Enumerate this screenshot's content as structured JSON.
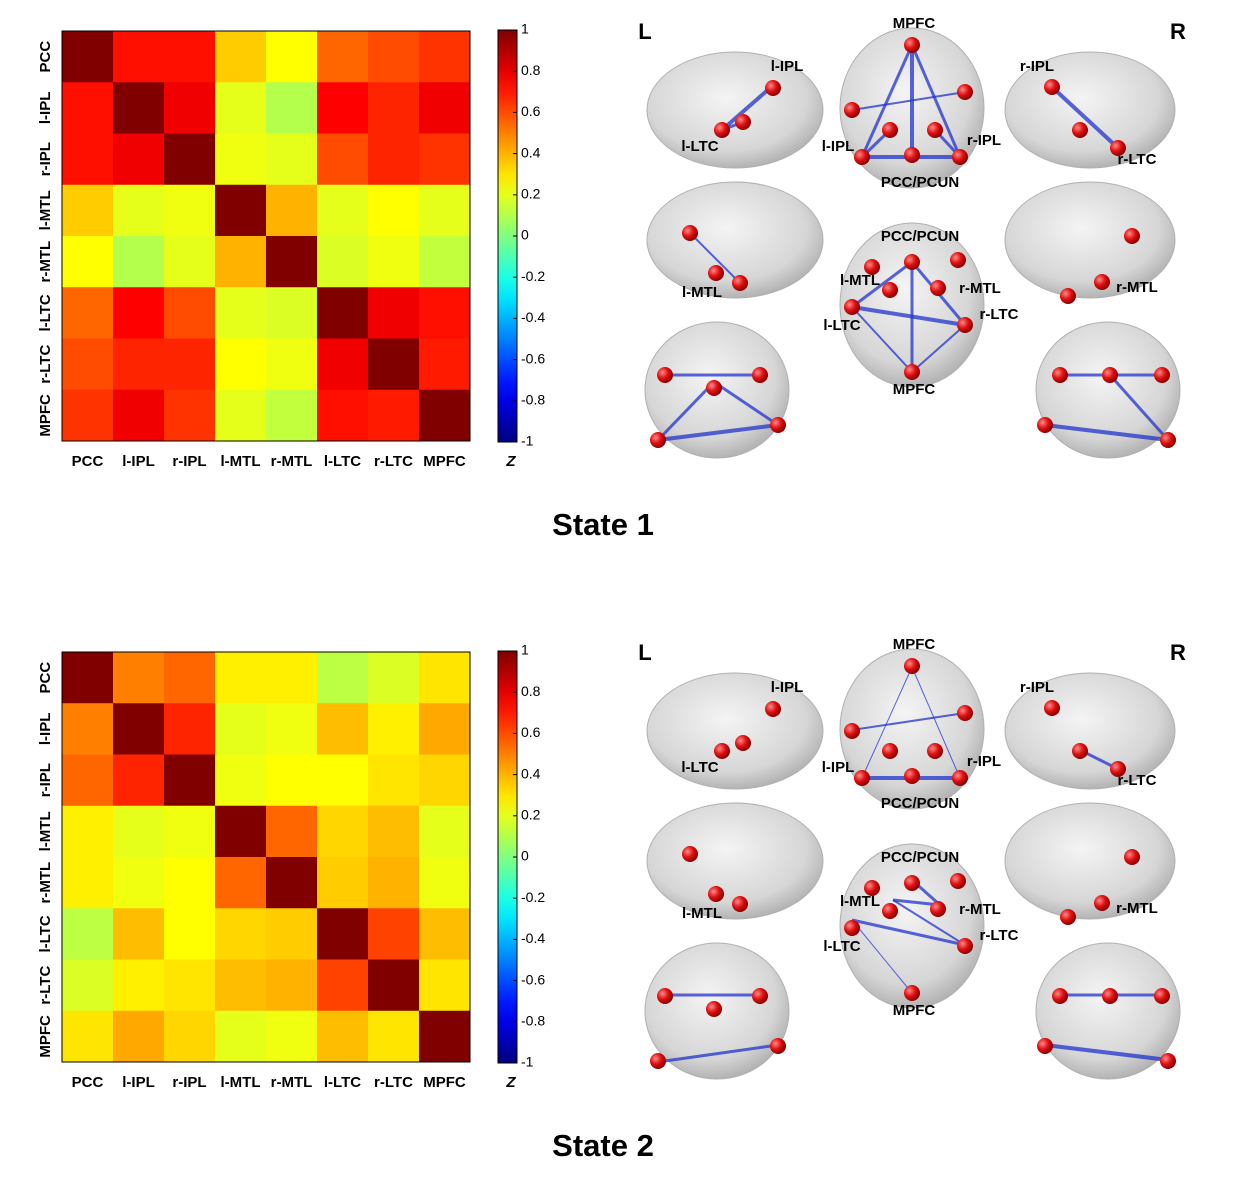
{
  "chart_data": [
    {
      "type": "heatmap",
      "title": "State 1",
      "colormap": "jet",
      "categories": [
        "PCC",
        "l-IPL",
        "r-IPL",
        "l-MTL",
        "r-MTL",
        "l-LTC",
        "r-LTC",
        "MPFC"
      ],
      "values": [
        [
          1,
          0.72,
          0.72,
          0.35,
          0.25,
          0.55,
          0.6,
          0.65
        ],
        [
          0.72,
          1,
          0.78,
          0.2,
          0.1,
          0.75,
          0.68,
          0.78
        ],
        [
          0.72,
          0.78,
          1,
          0.22,
          0.2,
          0.6,
          0.68,
          0.65
        ],
        [
          0.35,
          0.2,
          0.22,
          1,
          0.4,
          0.2,
          0.25,
          0.2
        ],
        [
          0.25,
          0.1,
          0.2,
          0.4,
          1,
          0.18,
          0.22,
          0.13
        ],
        [
          0.55,
          0.75,
          0.6,
          0.2,
          0.18,
          1,
          0.78,
          0.72
        ],
        [
          0.6,
          0.68,
          0.68,
          0.25,
          0.22,
          0.78,
          1,
          0.7
        ],
        [
          0.65,
          0.78,
          0.65,
          0.2,
          0.13,
          0.72,
          0.7,
          1
        ]
      ],
      "zlim": [
        -1,
        1
      ],
      "zticks": [
        1,
        0.8,
        0.6,
        0.4,
        0.2,
        0,
        -0.2,
        -0.4,
        -0.6,
        -0.8,
        -1
      ],
      "zlabel": "Z"
    },
    {
      "type": "heatmap",
      "title": "State 2",
      "colormap": "jet",
      "categories": [
        "PCC",
        "l-IPL",
        "r-IPL",
        "l-MTL",
        "r-MTL",
        "l-LTC",
        "r-LTC",
        "MPFC"
      ],
      "values": [
        [
          1,
          0.5,
          0.55,
          0.28,
          0.28,
          0.12,
          0.18,
          0.3
        ],
        [
          0.5,
          1,
          0.68,
          0.2,
          0.22,
          0.38,
          0.28,
          0.42
        ],
        [
          0.55,
          0.68,
          1,
          0.22,
          0.25,
          0.25,
          0.3,
          0.33
        ],
        [
          0.28,
          0.2,
          0.22,
          1,
          0.55,
          0.33,
          0.38,
          0.2
        ],
        [
          0.28,
          0.22,
          0.25,
          0.55,
          1,
          0.35,
          0.4,
          0.22
        ],
        [
          0.12,
          0.38,
          0.25,
          0.33,
          0.35,
          1,
          0.62,
          0.38
        ],
        [
          0.18,
          0.28,
          0.3,
          0.38,
          0.4,
          0.62,
          1,
          0.3
        ],
        [
          0.3,
          0.42,
          0.33,
          0.2,
          0.22,
          0.38,
          0.3,
          1
        ]
      ],
      "zlim": [
        -1,
        1
      ],
      "zticks": [
        1,
        0.8,
        0.6,
        0.4,
        0.2,
        0,
        -0.2,
        -0.4,
        -0.6,
        -0.8,
        -1
      ],
      "zlabel": "Z"
    }
  ],
  "brain_figures": [
    {
      "labels": [
        "L",
        "R",
        "l-IPL",
        "l-LTC",
        "MPFC",
        "l-IPL",
        "r-IPL",
        "PCC/PCUN",
        "r-IPL",
        "r-LTC",
        "l-MTL",
        "PCC/PCUN",
        "l-MTL",
        "r-MTL",
        "r-LTC",
        "l-LTC",
        "MPFC",
        "r-MTL"
      ]
    },
    {
      "labels": [
        "L",
        "R",
        "l-IPL",
        "l-LTC",
        "MPFC",
        "l-IPL",
        "r-IPL",
        "PCC/PCUN",
        "r-IPL",
        "r-LTC",
        "l-MTL",
        "PCC/PCUN",
        "l-MTL",
        "r-MTL",
        "r-LTC",
        "l-LTC",
        "MPFC",
        "r-MTL"
      ]
    }
  ]
}
